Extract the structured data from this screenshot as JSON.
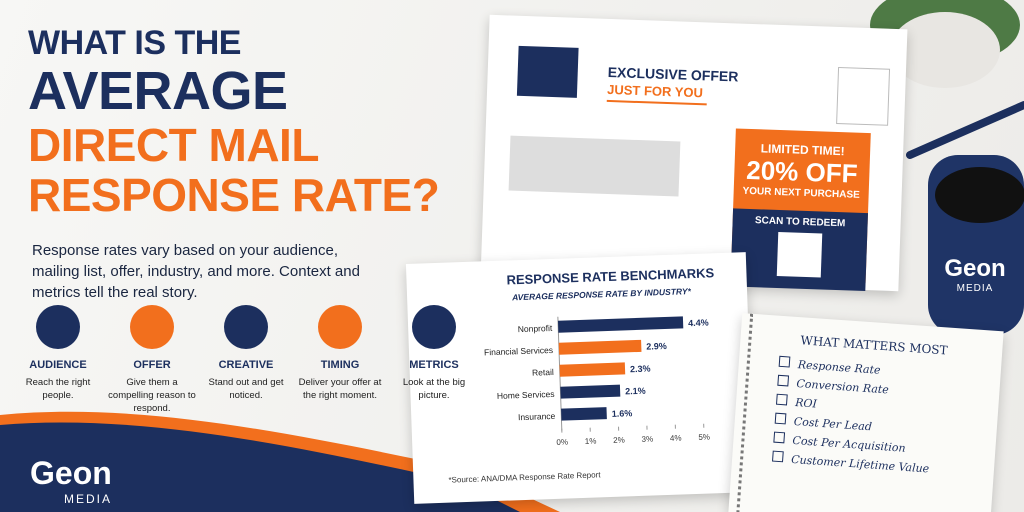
{
  "header": {
    "title_lines": [
      "WHAT IS THE",
      "AVERAGE",
      "DIRECT MAIL",
      "RESPONSE RATE?"
    ],
    "intro": "Response rates vary based on your audience, mailing list, offer, industry, and more. Context and metrics tell the real story."
  },
  "features": [
    {
      "title": "AUDIENCE",
      "text": "Reach the right people."
    },
    {
      "title": "OFFER",
      "text": "Give them a compelling reason to respond."
    },
    {
      "title": "CREATIVE",
      "text": "Stand out and get noticed."
    },
    {
      "title": "TIMING",
      "text": "Deliver your offer at the right moment."
    },
    {
      "title": "METRICS",
      "text": "Look at the big picture."
    }
  ],
  "logo": {
    "name": "Geon",
    "sub": "MEDIA"
  },
  "postcard": {
    "heading": "EXCLUSIVE OFFER",
    "subheading": "JUST FOR YOU",
    "promo_label": "LIMITED TIME!",
    "promo": "20% OFF",
    "promo_sub": "YOUR NEXT PURCHASE",
    "cta": "SCAN TO REDEEM"
  },
  "chart_data": {
    "type": "bar",
    "orientation": "horizontal",
    "title": "RESPONSE RATE BENCHMARKS",
    "subtitle": "AVERAGE RESPONSE RATE BY INDUSTRY*",
    "categories": [
      "Nonprofit",
      "Financial Services",
      "Retail",
      "Home Services",
      "Insurance"
    ],
    "values": [
      4.4,
      2.9,
      2.3,
      2.1,
      1.6
    ],
    "value_labels": [
      "4.4%",
      "2.9%",
      "2.3%",
      "2.1%",
      "1.6%"
    ],
    "colors": [
      "#1c2f5e",
      "#f26f1d",
      "#f26f1d",
      "#1c2f5e",
      "#1c2f5e"
    ],
    "xlim": [
      0,
      5
    ],
    "xticks": [
      {
        "value": 0,
        "label": "0%"
      },
      {
        "value": 1,
        "label": "1%"
      },
      {
        "value": 2,
        "label": "2%"
      },
      {
        "value": 3,
        "label": "3%"
      },
      {
        "value": 4,
        "label": "4%"
      },
      {
        "value": 5,
        "label": "5%"
      }
    ],
    "source": "*Source: ANA/DMA Response Rate Report"
  },
  "checklist": {
    "title": "WHAT MATTERS MOST",
    "items": [
      "Response Rate",
      "Conversion Rate",
      "ROI",
      "Cost Per Lead",
      "Cost Per Acquisition",
      "Customer Lifetime Value"
    ]
  },
  "mug": {
    "brand": "Geon",
    "sub": "MEDIA"
  }
}
